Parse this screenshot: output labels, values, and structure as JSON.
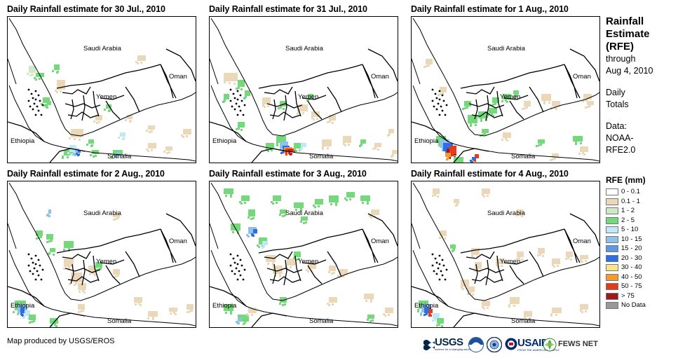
{
  "panels": [
    {
      "title": "Daily Rainfall estimate for 30 Jul., 2010",
      "rain": [
        [
          "#cfe9c6",
          30,
          70,
          10,
          10
        ],
        [
          "#74d97a",
          40,
          80,
          12,
          6
        ],
        [
          "#74d97a",
          66,
          68,
          8,
          8
        ],
        [
          "#ead8b8",
          70,
          90,
          12,
          14
        ],
        [
          "#ead8b8",
          185,
          55,
          12,
          8
        ],
        [
          "#74d97a",
          50,
          115,
          10,
          8
        ],
        [
          "#74d97a",
          56,
          120,
          6,
          6
        ],
        [
          "#ead8b8",
          90,
          160,
          18,
          12
        ],
        [
          "#74d97a",
          80,
          190,
          14,
          8
        ],
        [
          "#c0e8f8",
          88,
          183,
          10,
          10
        ],
        [
          "#8cc2ec",
          96,
          188,
          6,
          6
        ],
        [
          "#2c6ee6",
          100,
          190,
          4,
          4
        ],
        [
          "#74d97a",
          115,
          175,
          8,
          6
        ],
        [
          "#74d97a",
          120,
          190,
          10,
          6
        ],
        [
          "#74d97a",
          150,
          190,
          14,
          8
        ],
        [
          "#8cc2ec",
          155,
          193,
          6,
          4
        ],
        [
          "#ead8b8",
          200,
          180,
          12,
          8
        ],
        [
          "#ead8b8",
          225,
          185,
          10,
          6
        ],
        [
          "#ead8b8",
          250,
          160,
          12,
          8
        ],
        [
          "#ead8b8",
          200,
          155,
          10,
          6
        ],
        [
          "#ead8b8",
          125,
          140,
          10,
          8
        ],
        [
          "#74d97a",
          140,
          125,
          8,
          6
        ],
        [
          "#ead8b8",
          170,
          140,
          8,
          6
        ],
        [
          "#c0e8f8",
          160,
          165,
          8,
          6
        ]
      ]
    },
    {
      "title": "Daily Rainfall estimate for 31 Jul., 2010",
      "rain": [
        [
          "#ead8b8",
          20,
          80,
          20,
          12
        ],
        [
          "#74d97a",
          40,
          90,
          10,
          10
        ],
        [
          "#74d97a",
          20,
          110,
          8,
          8
        ],
        [
          "#74d97a",
          50,
          105,
          8,
          8
        ],
        [
          "#ead8b8",
          75,
          115,
          12,
          10
        ],
        [
          "#74d97a",
          100,
          120,
          10,
          8
        ],
        [
          "#ead8b8",
          125,
          125,
          15,
          10
        ],
        [
          "#74d97a",
          140,
          110,
          8,
          6
        ],
        [
          "#ead8b8",
          145,
          135,
          12,
          8
        ],
        [
          "#ead8b8",
          170,
          140,
          10,
          8
        ],
        [
          "#74d97a",
          80,
          180,
          12,
          8
        ],
        [
          "#74d97a",
          95,
          170,
          14,
          10
        ],
        [
          "#8cc2ec",
          100,
          178,
          12,
          10
        ],
        [
          "#2c6ee6",
          104,
          184,
          10,
          8
        ],
        [
          "#f49a2e",
          106,
          186,
          12,
          6
        ],
        [
          "#e43b1a",
          108,
          188,
          14,
          5
        ],
        [
          "#c02020",
          112,
          189,
          6,
          4
        ],
        [
          "#74d97a",
          120,
          180,
          12,
          8
        ],
        [
          "#c0e8f8",
          130,
          180,
          8,
          6
        ],
        [
          "#ead8b8",
          160,
          175,
          14,
          10
        ],
        [
          "#ead8b8",
          190,
          170,
          12,
          10
        ],
        [
          "#74d97a",
          215,
          175,
          8,
          6
        ],
        [
          "#ead8b8",
          235,
          180,
          10,
          6
        ],
        [
          "#ead8b8",
          255,
          160,
          8,
          6
        ],
        [
          "#ead8b8",
          260,
          190,
          8,
          6
        ],
        [
          "#74d97a",
          40,
          150,
          10,
          8
        ]
      ]
    },
    {
      "title": "Daily Rainfall estimate for 1 Aug., 2010",
      "rain": [
        [
          "#ead8b8",
          20,
          60,
          10,
          8
        ],
        [
          "#ead8b8",
          40,
          100,
          10,
          8
        ],
        [
          "#74d97a",
          75,
          120,
          10,
          8
        ],
        [
          "#74d97a",
          80,
          140,
          14,
          12
        ],
        [
          "#74d97a",
          95,
          135,
          14,
          10
        ],
        [
          "#74d97a",
          110,
          130,
          12,
          8
        ],
        [
          "#74d97a",
          115,
          115,
          10,
          8
        ],
        [
          "#74d97a",
          130,
          110,
          12,
          8
        ],
        [
          "#74d97a",
          145,
          105,
          8,
          6
        ],
        [
          "#ead8b8",
          160,
          120,
          10,
          8
        ],
        [
          "#ead8b8",
          185,
          110,
          14,
          10
        ],
        [
          "#ead8b8",
          200,
          120,
          12,
          8
        ],
        [
          "#ead8b8",
          245,
          110,
          12,
          8
        ],
        [
          "#ead8b8",
          250,
          120,
          10,
          6
        ],
        [
          "#74d97a",
          100,
          160,
          10,
          6
        ],
        [
          "#ead8b8",
          130,
          165,
          12,
          8
        ],
        [
          "#74d97a",
          35,
          170,
          14,
          10
        ],
        [
          "#8cc2ec",
          40,
          175,
          14,
          12
        ],
        [
          "#2c6ee6",
          45,
          180,
          14,
          12
        ],
        [
          "#a01818",
          50,
          188,
          14,
          10
        ],
        [
          "#e43b1a",
          54,
          184,
          10,
          12
        ],
        [
          "#f49a2e",
          48,
          194,
          8,
          6
        ],
        [
          "#74d97a",
          60,
          200,
          14,
          8
        ],
        [
          "#e43b1a",
          90,
          196,
          6,
          6
        ],
        [
          "#2c6ee6",
          86,
          200,
          6,
          4
        ],
        [
          "#74d97a",
          180,
          175,
          10,
          6
        ],
        [
          "#74d97a",
          230,
          170,
          14,
          8
        ],
        [
          "#ead8b8",
          240,
          185,
          12,
          8
        ],
        [
          "#ead8b8",
          200,
          195,
          10,
          6
        ]
      ]
    },
    {
      "title": "Daily Rainfall estimate for 2 Aug., 2010",
      "rain": [
        [
          "#8cc2ec",
          58,
          40,
          4,
          6
        ],
        [
          "#74d97a",
          40,
          70,
          10,
          8
        ],
        [
          "#74d97a",
          55,
          75,
          10,
          8
        ],
        [
          "#74d97a",
          60,
          95,
          8,
          6
        ],
        [
          "#74d97a",
          80,
          85,
          14,
          10
        ],
        [
          "#ead8b8",
          80,
          110,
          14,
          12
        ],
        [
          "#ead8b8",
          90,
          130,
          16,
          14
        ],
        [
          "#ead8b8",
          100,
          145,
          12,
          10
        ],
        [
          "#ead8b8",
          115,
          120,
          12,
          10
        ],
        [
          "#74d97a",
          125,
          115,
          10,
          8
        ],
        [
          "#ead8b8",
          150,
          125,
          10,
          8
        ],
        [
          "#74d97a",
          10,
          170,
          16,
          14
        ],
        [
          "#8cc2ec",
          14,
          175,
          14,
          12
        ],
        [
          "#2c6ee6",
          18,
          180,
          6,
          8
        ],
        [
          "#c0e8f8",
          24,
          184,
          8,
          8
        ],
        [
          "#74d97a",
          30,
          190,
          10,
          8
        ],
        [
          "#ead8b8",
          100,
          175,
          10,
          8
        ],
        [
          "#ead8b8",
          180,
          165,
          12,
          8
        ],
        [
          "#ead8b8",
          200,
          185,
          14,
          8
        ],
        [
          "#ead8b8",
          230,
          180,
          12,
          6
        ],
        [
          "#ead8b8",
          255,
          175,
          10,
          8
        ],
        [
          "#74d97a",
          60,
          195,
          12,
          8
        ],
        [
          "#ead8b8",
          150,
          45,
          10,
          6
        ]
      ]
    },
    {
      "title": "Daily Rainfall estimate for 3 Aug., 2010",
      "rain": [
        [
          "#74d97a",
          20,
          10,
          14,
          8
        ],
        [
          "#74d97a",
          45,
          20,
          12,
          8
        ],
        [
          "#74d97a",
          55,
          40,
          10,
          10
        ],
        [
          "#74d97a",
          30,
          60,
          14,
          10
        ],
        [
          "#8cc2ec",
          55,
          65,
          12,
          10
        ],
        [
          "#2c6ee6",
          62,
          68,
          6,
          6
        ],
        [
          "#74d97a",
          70,
          80,
          12,
          10
        ],
        [
          "#c0e8f8",
          75,
          85,
          8,
          6
        ],
        [
          "#74d97a",
          90,
          20,
          12,
          8
        ],
        [
          "#74d97a",
          120,
          30,
          14,
          8
        ],
        [
          "#74d97a",
          150,
          25,
          12,
          8
        ],
        [
          "#74d97a",
          170,
          20,
          14,
          10
        ],
        [
          "#74d97a",
          195,
          15,
          12,
          8
        ],
        [
          "#74d97a",
          215,
          20,
          14,
          8
        ],
        [
          "#ead8b8",
          230,
          40,
          12,
          8
        ],
        [
          "#74d97a",
          130,
          50,
          10,
          6
        ],
        [
          "#74d97a",
          100,
          40,
          10,
          6
        ],
        [
          "#ead8b8",
          80,
          105,
          14,
          10
        ],
        [
          "#ead8b8",
          90,
          120,
          14,
          12
        ],
        [
          "#ead8b8",
          110,
          110,
          12,
          10
        ],
        [
          "#74d97a",
          120,
          100,
          10,
          8
        ],
        [
          "#ead8b8",
          140,
          115,
          12,
          10
        ],
        [
          "#ead8b8",
          170,
          120,
          10,
          8
        ],
        [
          "#ead8b8",
          185,
          125,
          12,
          8
        ],
        [
          "#74d97a",
          20,
          175,
          14,
          10
        ],
        [
          "#74d97a",
          40,
          190,
          16,
          10
        ],
        [
          "#ead8b8",
          55,
          180,
          12,
          8
        ],
        [
          "#8cc2ec",
          40,
          195,
          6,
          4
        ],
        [
          "#74d97a",
          100,
          165,
          10,
          8
        ],
        [
          "#ead8b8",
          170,
          165,
          12,
          8
        ],
        [
          "#ead8b8",
          220,
          160,
          14,
          8
        ],
        [
          "#ead8b8",
          250,
          180,
          12,
          8
        ],
        [
          "#74d97a",
          225,
          190,
          10,
          6
        ]
      ]
    },
    {
      "title": "Daily Rainfall estimate for 4 Aug., 2010",
      "rain": [
        [
          "#ead8b8",
          30,
          10,
          10,
          8
        ],
        [
          "#ead8b8",
          60,
          25,
          8,
          6
        ],
        [
          "#ead8b8",
          100,
          10,
          12,
          8
        ],
        [
          "#ead8b8",
          150,
          40,
          10,
          6
        ],
        [
          "#ead8b8",
          40,
          70,
          10,
          8
        ],
        [
          "#74d97a",
          55,
          90,
          8,
          6
        ],
        [
          "#ead8b8",
          85,
          95,
          12,
          10
        ],
        [
          "#ead8b8",
          90,
          115,
          10,
          10
        ],
        [
          "#ead8b8",
          70,
          140,
          12,
          10
        ],
        [
          "#ead8b8",
          80,
          150,
          10,
          8
        ],
        [
          "#ead8b8",
          120,
          110,
          12,
          8
        ],
        [
          "#ead8b8",
          150,
          100,
          10,
          8
        ],
        [
          "#ead8b8",
          180,
          95,
          10,
          8
        ],
        [
          "#ead8b8",
          200,
          110,
          12,
          8
        ],
        [
          "#ead8b8",
          220,
          100,
          10,
          8
        ],
        [
          "#ead8b8",
          240,
          105,
          12,
          6
        ],
        [
          "#74d97a",
          10,
          170,
          14,
          12
        ],
        [
          "#8cc2ec",
          14,
          175,
          14,
          12
        ],
        [
          "#2c6ee6",
          18,
          180,
          10,
          8
        ],
        [
          "#e43b1a",
          24,
          182,
          6,
          6
        ],
        [
          "#c0e8f8",
          30,
          188,
          10,
          8
        ],
        [
          "#74d97a",
          36,
          195,
          10,
          8
        ],
        [
          "#ead8b8",
          100,
          170,
          12,
          8
        ],
        [
          "#ead8b8",
          140,
          165,
          14,
          10
        ],
        [
          "#ead8b8",
          160,
          185,
          12,
          8
        ],
        [
          "#ead8b8",
          200,
          180,
          14,
          8
        ],
        [
          "#ead8b8",
          240,
          175,
          12,
          8
        ]
      ]
    }
  ],
  "labels": {
    "saudi": "Saudi Arabia",
    "oman": "Oman",
    "yemen": "Yemen",
    "ethiopia": "Ethiopia",
    "somalia": "Somalia"
  },
  "sidebar": {
    "title": [
      "Rainfall",
      "Estimate",
      "(RFE)"
    ],
    "through": "through",
    "date": "Aug 4, 2010",
    "daily": "Daily",
    "totals": "Totals",
    "data_label": "Data:",
    "source1": "NOAA-",
    "source2": "RFE2.0"
  },
  "legend": {
    "title": "RFE (mm)",
    "items": [
      {
        "label": "0 - 0.1",
        "color": "#ffffff"
      },
      {
        "label": "0.1 - 1",
        "color": "#ead8b8"
      },
      {
        "label": "1 - 2",
        "color": "#cfe9c6"
      },
      {
        "label": "2 - 5",
        "color": "#74d97a"
      },
      {
        "label": "5 - 10",
        "color": "#c0e8f8"
      },
      {
        "label": "10 - 15",
        "color": "#8cc2ec"
      },
      {
        "label": "15 - 20",
        "color": "#5b99e4"
      },
      {
        "label": "20 - 30",
        "color": "#2c6ee6"
      },
      {
        "label": "30 - 40",
        "color": "#f9e58c"
      },
      {
        "label": "40 - 50",
        "color": "#f49a2e"
      },
      {
        "label": "50 - 75",
        "color": "#e43b1a"
      },
      {
        "label": "> 75",
        "color": "#a01818"
      },
      {
        "label": "No Data",
        "color": "#999999"
      }
    ]
  },
  "credit": "Map produced by USGS/EROS",
  "logos": {
    "usgs": "USGS",
    "usgs_sub": "science for a changing world",
    "usaid": "USAID",
    "usaid_sub": "FROM THE AMERICAN PEOPLE",
    "fews": "FEWS NET"
  }
}
